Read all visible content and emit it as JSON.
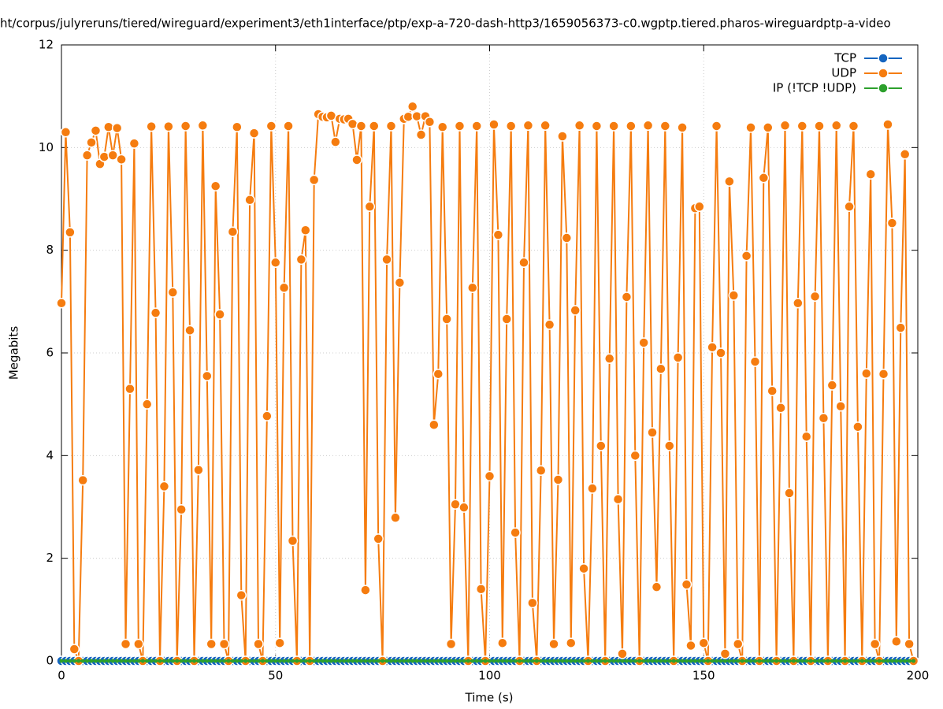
{
  "chart_data": {
    "type": "line",
    "title": "ht/corpus/julyreruns/tiered/wireguard/experiment3/eth1interface/ptp/exp-a-720-dash-http3/1659056373-c0.wgptp.tiered.pharos-wireguardptp-a-video",
    "x_label": "Time (s)",
    "y_label": "Megabits",
    "xlim": [
      0,
      200
    ],
    "xticks": [
      0,
      50,
      100,
      150,
      200
    ],
    "ylim": [
      0,
      12
    ],
    "yticks": [
      0,
      2,
      4,
      6,
      8,
      10,
      12
    ],
    "grid": true,
    "legend": "top-right",
    "x": [
      0,
      1,
      2,
      3,
      4,
      5,
      6,
      7,
      8,
      9,
      10,
      11,
      12,
      13,
      14,
      15,
      16,
      17,
      18,
      19,
      20,
      21,
      22,
      23,
      24,
      25,
      26,
      27,
      28,
      29,
      30,
      31,
      32,
      33,
      34,
      35,
      36,
      37,
      38,
      39,
      40,
      41,
      42,
      43,
      44,
      45,
      46,
      47,
      48,
      49,
      50,
      51,
      52,
      53,
      54,
      55,
      56,
      57,
      58,
      59,
      60,
      61,
      62,
      63,
      64,
      65,
      66,
      67,
      68,
      69,
      70,
      71,
      72,
      73,
      74,
      75,
      76,
      77,
      78,
      79,
      80,
      81,
      82,
      83,
      84,
      85,
      86,
      87,
      88,
      89,
      90,
      91,
      92,
      93,
      94,
      95,
      96,
      97,
      98,
      99,
      100,
      101,
      102,
      103,
      104,
      105,
      106,
      107,
      108,
      109,
      110,
      111,
      112,
      113,
      114,
      115,
      116,
      117,
      118,
      119,
      120,
      121,
      122,
      123,
      124,
      125,
      126,
      127,
      128,
      129,
      130,
      131,
      132,
      133,
      134,
      135,
      136,
      137,
      138,
      139,
      140,
      141,
      142,
      143,
      144,
      145,
      146,
      147,
      148,
      149,
      150,
      151,
      152,
      153,
      154,
      155,
      156,
      157,
      158,
      159,
      160,
      161,
      162,
      163,
      164,
      165,
      166,
      167,
      168,
      169,
      170,
      171,
      172,
      173,
      174,
      175,
      176,
      177,
      178,
      179,
      180,
      181,
      182,
      183,
      184,
      185,
      186,
      187,
      188,
      189,
      190,
      191,
      192,
      193,
      194,
      195,
      196,
      197,
      198,
      199
    ],
    "series": [
      {
        "name": "TCP",
        "color": "#1565c0",
        "values": [
          0,
          0,
          0,
          0,
          0,
          0,
          0,
          0,
          0,
          0,
          0,
          0,
          0,
          0,
          0,
          0,
          0,
          0,
          0,
          0,
          0,
          0,
          0,
          0,
          0,
          0,
          0,
          0,
          0,
          0,
          0,
          0,
          0,
          0,
          0,
          0,
          0,
          0,
          0,
          0,
          0,
          0,
          0,
          0,
          0,
          0,
          0,
          0,
          0,
          0,
          0,
          0,
          0,
          0,
          0,
          0,
          0,
          0,
          0,
          0,
          0,
          0,
          0,
          0,
          0,
          0,
          0,
          0,
          0,
          0,
          0,
          0,
          0,
          0,
          0,
          0,
          0,
          0,
          0,
          0,
          0,
          0,
          0,
          0,
          0,
          0,
          0,
          0,
          0,
          0,
          0,
          0,
          0,
          0,
          0,
          0,
          0,
          0,
          0,
          0,
          0,
          0,
          0,
          0,
          0,
          0,
          0,
          0,
          0,
          0,
          0,
          0,
          0,
          0,
          0,
          0,
          0,
          0,
          0,
          0,
          0,
          0,
          0,
          0,
          0,
          0,
          0,
          0,
          0,
          0,
          0,
          0,
          0,
          0,
          0,
          0,
          0,
          0,
          0,
          0,
          0,
          0,
          0,
          0,
          0,
          0,
          0,
          0,
          0,
          0,
          0,
          0,
          0,
          0,
          0,
          0,
          0,
          0,
          0,
          0,
          0,
          0,
          0,
          0,
          0,
          0,
          0,
          0,
          0,
          0,
          0,
          0,
          0,
          0,
          0,
          0,
          0,
          0,
          0,
          0,
          0,
          0,
          0,
          0,
          0,
          0,
          0,
          0,
          0,
          0,
          0,
          0,
          0,
          0,
          0,
          0,
          0,
          0,
          0,
          0
        ]
      },
      {
        "name": "UDP",
        "color": "#f57c0f",
        "values": [
          6.97,
          10.3,
          8.35,
          0.23,
          0,
          3.52,
          9.85,
          10.1,
          10.33,
          9.68,
          9.82,
          10.4,
          9.85,
          10.38,
          9.77,
          0.33,
          5.3,
          10.08,
          0.33,
          0,
          5.0,
          10.41,
          6.78,
          0,
          3.4,
          10.41,
          7.18,
          0,
          2.95,
          10.42,
          6.44,
          0,
          3.72,
          10.43,
          5.55,
          0.33,
          9.25,
          6.75,
          0.33,
          0,
          8.36,
          10.4,
          1.28,
          0,
          8.98,
          10.28,
          0.33,
          0,
          4.77,
          10.42,
          7.76,
          0.35,
          7.27,
          10.42,
          2.34,
          0,
          7.82,
          8.39,
          0,
          9.37,
          10.65,
          10.6,
          10.59,
          10.62,
          10.11,
          10.56,
          10.55,
          10.56,
          10.46,
          9.76,
          10.42,
          1.38,
          8.85,
          10.42,
          2.38,
          0,
          7.82,
          10.42,
          2.79,
          7.37,
          10.56,
          10.6,
          10.8,
          10.61,
          10.25,
          10.61,
          10.5,
          4.6,
          5.59,
          10.4,
          6.66,
          0.33,
          3.05,
          10.42,
          2.99,
          0,
          7.27,
          10.42,
          1.4,
          0,
          3.6,
          10.45,
          8.3,
          0.35,
          6.66,
          10.42,
          2.5,
          0,
          7.76,
          10.43,
          1.13,
          0,
          3.71,
          10.43,
          6.55,
          0.33,
          3.53,
          10.22,
          8.24,
          0.35,
          6.83,
          10.43,
          1.8,
          0,
          3.36,
          10.42,
          4.19,
          0,
          5.89,
          10.42,
          3.15,
          0.14,
          7.09,
          10.42,
          4.0,
          0,
          6.2,
          10.43,
          4.45,
          1.44,
          5.69,
          10.42,
          4.19,
          0,
          5.91,
          10.39,
          1.49,
          0.3,
          8.82,
          8.85,
          0.35,
          0,
          6.11,
          10.42,
          6.0,
          0.14,
          9.34,
          7.12,
          0.33,
          0,
          7.89,
          10.39,
          5.83,
          0,
          9.41,
          10.39,
          5.26,
          0,
          4.93,
          10.43,
          3.27,
          0,
          6.97,
          10.42,
          4.37,
          0,
          7.1,
          10.42,
          4.73,
          0,
          5.37,
          10.43,
          4.96,
          0,
          8.85,
          10.42,
          4.56,
          0,
          5.6,
          9.48,
          0.33,
          0,
          5.59,
          10.45,
          8.53,
          0.38,
          6.49,
          9.87,
          0.33,
          0
        ]
      },
      {
        "name": "IP (!TCP  !UDP)",
        "color": "#2ca02c",
        "values": [
          0,
          0,
          0,
          0,
          0,
          0,
          0,
          0,
          0,
          0,
          0,
          0,
          0,
          0,
          0,
          0,
          0,
          0,
          0,
          0,
          0,
          0,
          0,
          0,
          0,
          0,
          0,
          0,
          0,
          0,
          0,
          0,
          0,
          0,
          0,
          0,
          0,
          0,
          0,
          0,
          0,
          0,
          0,
          0,
          0,
          0,
          0,
          0,
          0,
          0,
          0,
          0,
          0,
          0,
          0,
          0,
          0,
          0,
          0,
          0,
          0,
          0,
          0,
          0,
          0,
          0,
          0,
          0,
          0,
          0,
          0,
          0,
          0,
          0,
          0,
          0,
          0,
          0,
          0,
          0,
          0,
          0,
          0,
          0,
          0,
          0,
          0,
          0,
          0,
          0,
          0,
          0,
          0,
          0,
          0,
          0,
          0,
          0,
          0,
          0,
          0,
          0,
          0,
          0,
          0,
          0,
          0,
          0,
          0,
          0,
          0,
          0,
          0,
          0,
          0,
          0,
          0,
          0,
          0,
          0,
          0,
          0,
          0,
          0,
          0,
          0,
          0,
          0,
          0,
          0,
          0,
          0,
          0,
          0,
          0,
          0,
          0,
          0,
          0,
          0,
          0,
          0,
          0,
          0,
          0,
          0,
          0,
          0,
          0,
          0,
          0,
          0,
          0,
          0,
          0,
          0,
          0,
          0,
          0,
          0,
          0,
          0,
          0,
          0,
          0,
          0,
          0,
          0,
          0,
          0,
          0,
          0,
          0,
          0,
          0,
          0,
          0,
          0,
          0,
          0,
          0,
          0,
          0,
          0,
          0,
          0,
          0,
          0,
          0,
          0,
          0,
          0,
          0,
          0,
          0,
          0,
          0,
          0,
          0,
          0
        ]
      }
    ]
  }
}
